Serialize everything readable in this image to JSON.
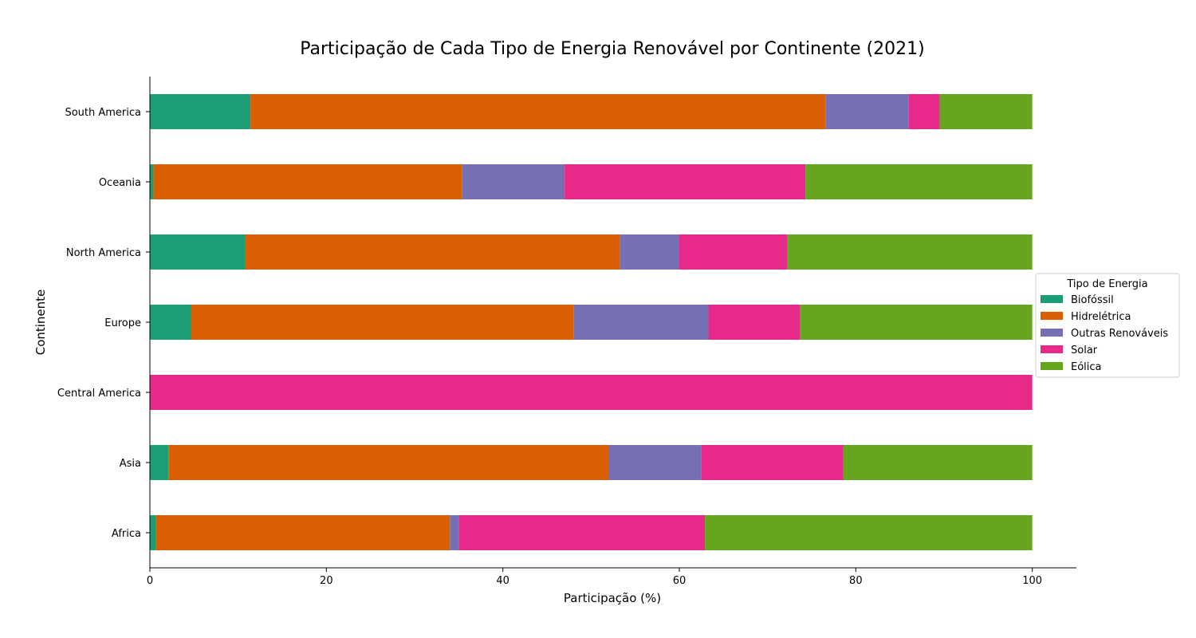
{
  "chart_data": {
    "type": "bar",
    "orientation": "horizontal",
    "stacked": true,
    "title": "Participação de Cada Tipo de Energia Renovável por Continente (2021)",
    "xlabel": "Participação (%)",
    "ylabel": "Continente",
    "xlim": [
      0,
      105
    ],
    "xticks": [
      0,
      20,
      40,
      60,
      80,
      100
    ],
    "grid": false,
    "legend": {
      "title": "Tipo de Energia",
      "placement": "center-right"
    },
    "categories": [
      "Africa",
      "Asia",
      "Central America",
      "Europe",
      "North America",
      "Oceania",
      "South America"
    ],
    "series": [
      {
        "name": "Biofóssil",
        "color": "#1b9e77",
        "values": [
          0.7,
          2.1,
          0.0,
          4.7,
          10.8,
          0.4,
          11.4
        ]
      },
      {
        "name": "Hidrelétrica",
        "color": "#d95f02",
        "values": [
          33.3,
          49.9,
          0.0,
          43.3,
          42.5,
          35.0,
          65.2
        ]
      },
      {
        "name": "Outras Renováveis",
        "color": "#7570b3",
        "values": [
          1.0,
          10.5,
          0.0,
          15.3,
          6.7,
          11.6,
          9.4
        ]
      },
      {
        "name": "Solar",
        "color": "#e7298a",
        "values": [
          27.9,
          16.1,
          100.0,
          10.4,
          12.2,
          27.3,
          3.5
        ]
      },
      {
        "name": "Eólica",
        "color": "#66a61e",
        "values": [
          37.1,
          21.4,
          0.0,
          26.3,
          27.8,
          25.7,
          10.5
        ]
      }
    ]
  }
}
